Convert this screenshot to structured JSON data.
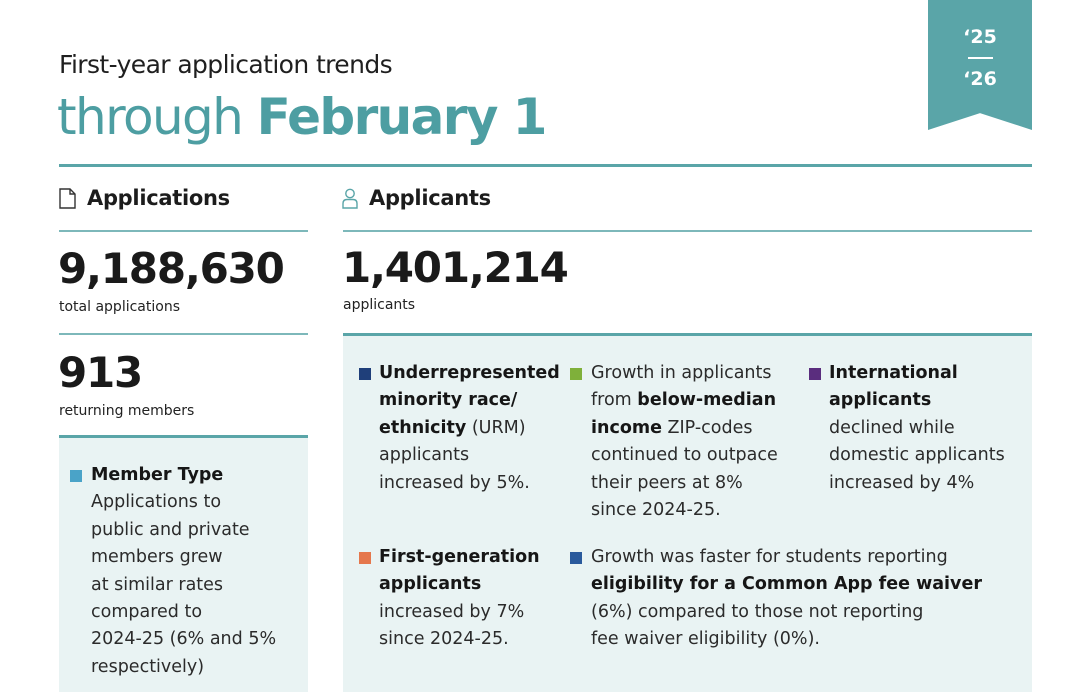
{
  "header": {
    "subtitle": "First-year application trends",
    "title_light": "through ",
    "title_bold": "February 1"
  },
  "ribbon": {
    "year_start": "‘25",
    "year_end": "‘26",
    "color": "#5aa5a8"
  },
  "applications": {
    "heading": "Applications",
    "total_value": "9,188,630",
    "total_label": "total applications",
    "members_value": "913",
    "members_label": "returning members",
    "member_type": {
      "title": "Member Type",
      "lines": [
        "Applications to",
        "public and private",
        "members grew",
        "at similar rates",
        "compared to",
        "2024-25 (6% and 5%",
        "respectively)"
      ],
      "color": "#4aa3c8"
    }
  },
  "applicants": {
    "heading": "Applicants",
    "total_value": "1,401,214",
    "total_label": "applicants",
    "urm": {
      "bold_lines": [
        "Underrepresented",
        "minority race/",
        "ethnicity"
      ],
      "suffix": " (URM)",
      "lines": [
        "applicants",
        "increased by 5%."
      ],
      "color": "#1f3f7a"
    },
    "income": {
      "line1": "Growth in applicants",
      "line2_pre": "from ",
      "line2_bold": "below-median",
      "line3_bold": "income",
      "line3_post": " ZIP-codes",
      "lines": [
        "continued to outpace",
        "their peers at 8%",
        "since 2024-25."
      ],
      "color": "#7fb03a"
    },
    "international": {
      "bold_lines": [
        "International",
        "applicants"
      ],
      "lines": [
        "declined while",
        "domestic applicants",
        "increased by 4%"
      ],
      "color": "#5a2d7e"
    },
    "first_gen": {
      "bold_lines": [
        "First-generation",
        "applicants"
      ],
      "lines": [
        "increased by 7%",
        "since 2024-25."
      ],
      "color": "#e5774c"
    },
    "fee_waiver": {
      "line1": "Growth was faster for students reporting",
      "line2_bold": "eligibility for a Common App fee waiver",
      "lines": [
        "(6%) compared to those not reporting",
        "fee waiver eligibility (0%)."
      ],
      "color": "#2a5a9c"
    }
  }
}
